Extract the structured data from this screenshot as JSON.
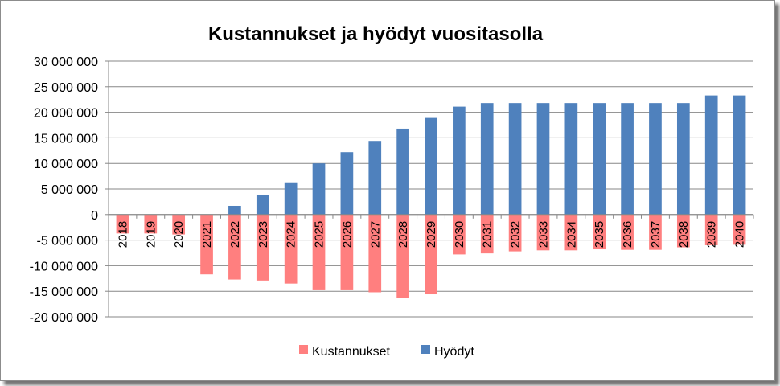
{
  "chart_data": {
    "type": "bar",
    "title": "Kustannukset ja hyödyt vuositasolla",
    "xlabel": "",
    "ylabel": "",
    "ylim": [
      -20000000,
      30000000
    ],
    "yticks": [
      30000000,
      25000000,
      20000000,
      15000000,
      10000000,
      5000000,
      0,
      -5000000,
      -10000000,
      -15000000,
      -20000000
    ],
    "ytick_labels": [
      "30 000 000",
      "25 000 000",
      "20 000 000",
      "15 000 000",
      "10 000 000",
      "5 000 000",
      "0",
      "-5 000 000",
      "-10 000 000",
      "-15 000 000",
      "-20 000 000"
    ],
    "categories": [
      "2018",
      "2019",
      "2020",
      "2021",
      "2022",
      "2023",
      "2024",
      "2025",
      "2026",
      "2027",
      "2028",
      "2029",
      "2030",
      "2031",
      "2032",
      "2033",
      "2034",
      "2035",
      "2036",
      "2037",
      "2038",
      "2039",
      "2040"
    ],
    "grid": true,
    "legend_position": "bottom",
    "series": [
      {
        "name": "Kustannukset",
        "color": "#ff7f7f",
        "values": [
          -3700000,
          -3700000,
          -3900000,
          -11700000,
          -12700000,
          -12900000,
          -13500000,
          -14800000,
          -14800000,
          -15200000,
          -16300000,
          -15600000,
          -7800000,
          -7600000,
          -7200000,
          -7000000,
          -7000000,
          -6800000,
          -6900000,
          -6900000,
          -6400000,
          -6000000,
          -5900000
        ]
      },
      {
        "name": "Hyödyt",
        "color": "#4f81bd",
        "values": [
          0,
          0,
          0,
          0,
          1700000,
          3900000,
          6300000,
          10000000,
          12200000,
          14400000,
          16800000,
          18900000,
          21100000,
          21800000,
          21800000,
          21800000,
          21800000,
          21800000,
          21800000,
          21800000,
          21800000,
          23300000,
          23300000
        ]
      }
    ]
  }
}
